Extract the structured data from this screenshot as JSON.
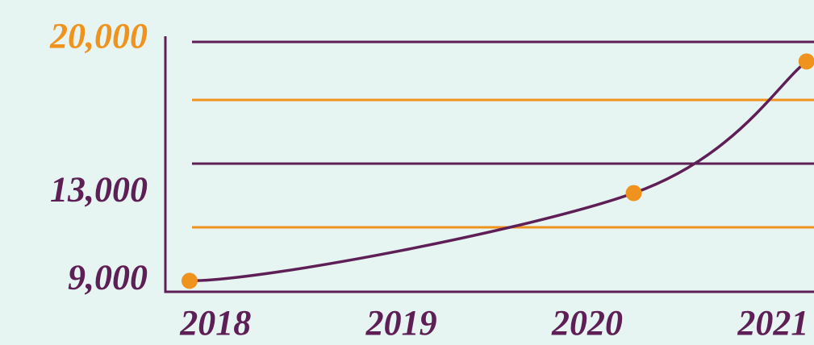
{
  "chart_data": {
    "type": "line",
    "x": [
      2017.86,
      2020.25,
      2021.18
    ],
    "series": [
      {
        "color": "#5e1f56",
        "marker_color": "#f0921e",
        "values": [
          9000,
          13000,
          19000
        ]
      }
    ],
    "xlim": [
      2017.73,
      2021.22
    ],
    "xticks": [
      2018,
      2019,
      2020,
      2021
    ],
    "ylim": [
      8500,
      21800
    ],
    "yticks": [
      {
        "value": 9000,
        "label": "9,000"
      },
      {
        "value": 13000,
        "label": "13,000"
      },
      {
        "value": 20000,
        "label": "20,000"
      }
    ],
    "ytick_colors": [
      "#5e1f56",
      "#5e1f56",
      "#f0921e"
    ],
    "axis_color": "#5e1f56"
  }
}
